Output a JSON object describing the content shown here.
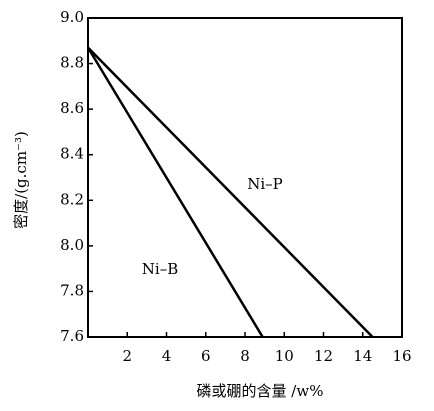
{
  "chart_data": {
    "type": "line",
    "xlabel": "磷或硼的含量 /w%",
    "ylabel": "密度/(g.cm⁻³)",
    "xlim": [
      0,
      16
    ],
    "xticks": [
      2,
      4,
      6,
      8,
      10,
      12,
      14,
      16
    ],
    "ylim": [
      7.6,
      9.0
    ],
    "yticks": [
      7.6,
      7.8,
      {
        "value": 8.0,
        "label": "8.0"
      },
      8.2,
      8.4,
      8.6,
      8.8,
      {
        "value": 9.0,
        "label": "9.0"
      }
    ],
    "grid": false,
    "series": [
      {
        "name": "Ni–P",
        "color": "#000000",
        "x": [
          0,
          14.5
        ],
        "values": [
          8.87,
          7.6
        ]
      },
      {
        "name": "Ni–B",
        "color": "#000000",
        "x": [
          0,
          8.9
        ],
        "values": [
          8.87,
          7.6
        ]
      }
    ]
  }
}
